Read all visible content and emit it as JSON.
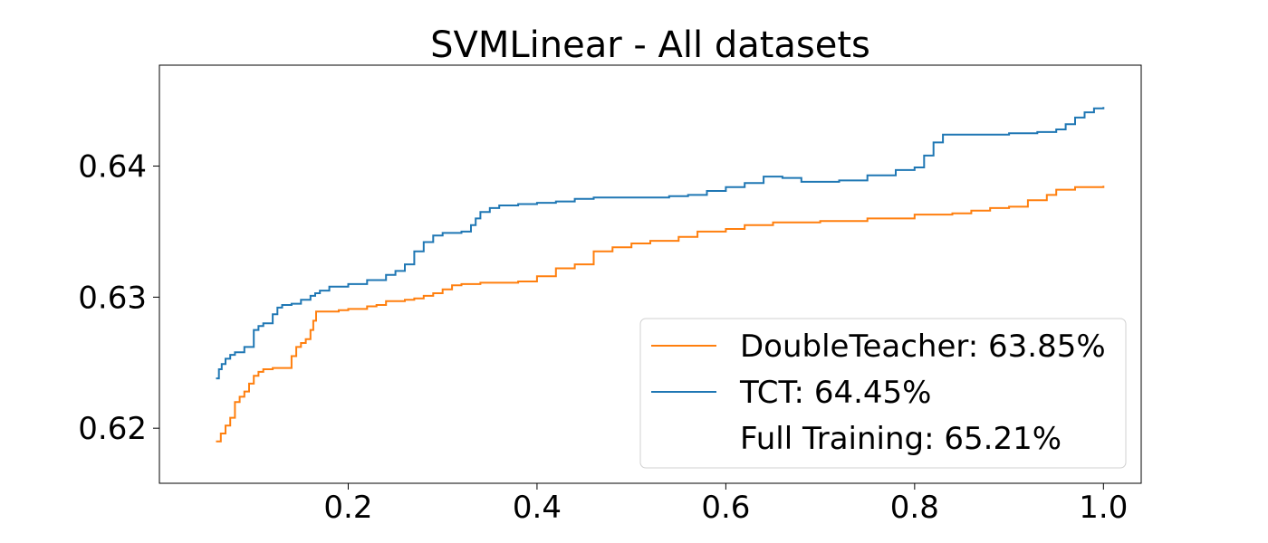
{
  "chart_data": {
    "type": "line",
    "title": "SVMLinear - All datasets",
    "xlabel": "",
    "ylabel": "",
    "xlim": [
      0.0,
      1.04
    ],
    "ylim": [
      0.6158,
      0.6477
    ],
    "xticks": [
      0.2,
      0.4,
      0.6,
      0.8,
      1.0
    ],
    "xtick_labels": [
      "0.2",
      "0.4",
      "0.6",
      "0.8",
      "1.0"
    ],
    "yticks": [
      0.62,
      0.63,
      0.64
    ],
    "ytick_labels": [
      "0.62",
      "0.63",
      "0.64"
    ],
    "grid": false,
    "legend_position": "lower-right",
    "legend": [
      {
        "label": "DoubleTeacher: 63.85%",
        "color": "#ff7f0e",
        "marker": "line"
      },
      {
        "label": "TCT: 64.45%",
        "color": "#1f77b4",
        "marker": "line"
      },
      {
        "label": "Full Training: 65.21%",
        "color": "none",
        "marker": "none"
      }
    ],
    "series": [
      {
        "name": "DoubleTeacher",
        "color": "#ff7f0e",
        "x": [
          0.06,
          0.065,
          0.07,
          0.075,
          0.08,
          0.085,
          0.09,
          0.095,
          0.1,
          0.105,
          0.11,
          0.12,
          0.13,
          0.14,
          0.145,
          0.15,
          0.155,
          0.16,
          0.163,
          0.166,
          0.17,
          0.19,
          0.2,
          0.22,
          0.23,
          0.24,
          0.26,
          0.27,
          0.28,
          0.29,
          0.3,
          0.31,
          0.32,
          0.34,
          0.36,
          0.38,
          0.4,
          0.42,
          0.44,
          0.46,
          0.48,
          0.5,
          0.52,
          0.55,
          0.57,
          0.6,
          0.62,
          0.65,
          0.7,
          0.75,
          0.78,
          0.8,
          0.84,
          0.86,
          0.88,
          0.9,
          0.92,
          0.94,
          0.95,
          0.97,
          1.0
        ],
        "values": [
          0.619,
          0.6196,
          0.6202,
          0.6208,
          0.622,
          0.6224,
          0.6228,
          0.6234,
          0.624,
          0.6243,
          0.6245,
          0.6246,
          0.6246,
          0.6255,
          0.6262,
          0.6265,
          0.6268,
          0.6275,
          0.6282,
          0.6289,
          0.6289,
          0.629,
          0.6291,
          0.6293,
          0.6294,
          0.6297,
          0.6298,
          0.6299,
          0.6301,
          0.6303,
          0.6306,
          0.6309,
          0.631,
          0.6311,
          0.6311,
          0.6312,
          0.6316,
          0.6322,
          0.6325,
          0.6335,
          0.6338,
          0.6341,
          0.6343,
          0.6346,
          0.635,
          0.6352,
          0.6355,
          0.6357,
          0.6358,
          0.636,
          0.636,
          0.6363,
          0.6364,
          0.6366,
          0.6368,
          0.6369,
          0.6374,
          0.6378,
          0.6382,
          0.6384,
          0.6385
        ]
      },
      {
        "name": "TCT",
        "color": "#1f77b4",
        "x": [
          0.06,
          0.063,
          0.066,
          0.07,
          0.075,
          0.08,
          0.09,
          0.1,
          0.105,
          0.11,
          0.12,
          0.125,
          0.13,
          0.14,
          0.15,
          0.16,
          0.165,
          0.17,
          0.18,
          0.2,
          0.22,
          0.24,
          0.25,
          0.26,
          0.27,
          0.28,
          0.29,
          0.3,
          0.31,
          0.32,
          0.33,
          0.335,
          0.34,
          0.35,
          0.36,
          0.38,
          0.4,
          0.42,
          0.44,
          0.46,
          0.5,
          0.54,
          0.56,
          0.58,
          0.6,
          0.62,
          0.64,
          0.66,
          0.68,
          0.72,
          0.75,
          0.78,
          0.8,
          0.81,
          0.82,
          0.83,
          0.86,
          0.9,
          0.93,
          0.95,
          0.96,
          0.97,
          0.98,
          0.99,
          1.0
        ],
        "values": [
          0.6238,
          0.6245,
          0.6249,
          0.6253,
          0.6256,
          0.6258,
          0.6262,
          0.6275,
          0.6278,
          0.628,
          0.6287,
          0.6292,
          0.6294,
          0.6295,
          0.6298,
          0.6301,
          0.6303,
          0.6305,
          0.6308,
          0.631,
          0.6313,
          0.6317,
          0.632,
          0.6325,
          0.6335,
          0.6342,
          0.6347,
          0.6349,
          0.6349,
          0.635,
          0.6355,
          0.636,
          0.6365,
          0.6368,
          0.637,
          0.6371,
          0.6372,
          0.6373,
          0.6375,
          0.6376,
          0.6376,
          0.6377,
          0.6378,
          0.6381,
          0.6384,
          0.6387,
          0.6392,
          0.6391,
          0.6388,
          0.6389,
          0.6393,
          0.6397,
          0.6399,
          0.6408,
          0.6418,
          0.6424,
          0.6424,
          0.6425,
          0.6426,
          0.6428,
          0.6432,
          0.6437,
          0.6441,
          0.6444,
          0.6445
        ]
      }
    ]
  }
}
